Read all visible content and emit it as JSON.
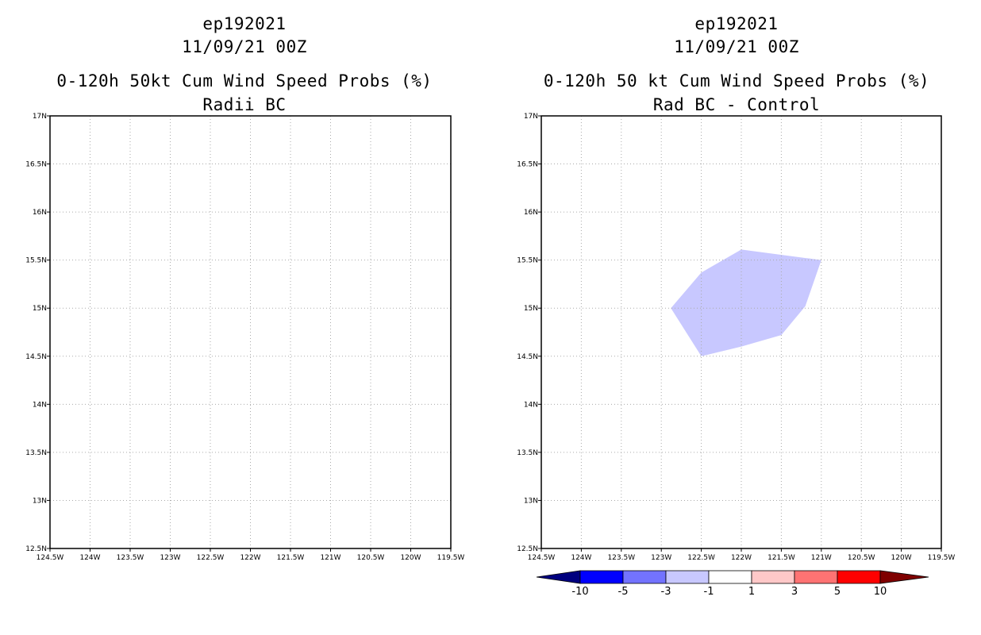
{
  "colors": {
    "frame": "#000000",
    "grid": "#aaaaaa",
    "background": "#ffffff",
    "shading_-3_-1": "#c8c8ff"
  },
  "left_panel": {
    "title_line1": "ep192021",
    "title_line2": "11/09/21 00Z",
    "title_line3": "0-120h 50kt Cum Wind Speed Probs (%)",
    "title_line4": "Radii BC",
    "lat_labels": [
      "12.5N",
      "13N",
      "13.5N",
      "14N",
      "14.5N",
      "15N",
      "15.5N",
      "16N",
      "16.5N",
      "17N"
    ],
    "lon_labels": [
      "124.5W",
      "124W",
      "123.5W",
      "123W",
      "122.5W",
      "122W",
      "121.5W",
      "121W",
      "120.5W",
      "120W",
      "119.5W"
    ]
  },
  "right_panel": {
    "title_line1": "ep192021",
    "title_line2": "11/09/21 00Z",
    "title_line3": "0-120h 50 kt Cum Wind Speed Probs (%)",
    "title_line4": "Rad BC - Control",
    "lat_labels": [
      "12.5N",
      "13N",
      "13.5N",
      "14N",
      "14.5N",
      "15N",
      "15.5N",
      "16N",
      "16.5N",
      "17N"
    ],
    "lon_labels": [
      "124.5W",
      "124W",
      "123.5W",
      "123W",
      "122.5W",
      "122W",
      "121.5W",
      "121W",
      "120.5W",
      "120W",
      "119.5W"
    ],
    "shaded_region": {
      "value_range": "-3 to -1",
      "color": "#c8c8ff",
      "polygon_lonlat": [
        [
          -122.88,
          15.0
        ],
        [
          -122.5,
          15.37
        ],
        [
          -122.0,
          15.61
        ],
        [
          -121.0,
          15.5
        ],
        [
          -121.2,
          15.02
        ],
        [
          -121.5,
          14.72
        ],
        [
          -122.0,
          14.6
        ],
        [
          -122.5,
          14.5
        ]
      ]
    }
  },
  "colorbar": {
    "labels": [
      "-10",
      "-5",
      "-3",
      "-1",
      "1",
      "3",
      "5",
      "10"
    ],
    "colors": [
      "#00007f",
      "#0000ff",
      "#7373ff",
      "#c8c8ff",
      "#ffffff",
      "#ffc8c8",
      "#ff7373",
      "#ff0000",
      "#7f0000"
    ]
  }
}
